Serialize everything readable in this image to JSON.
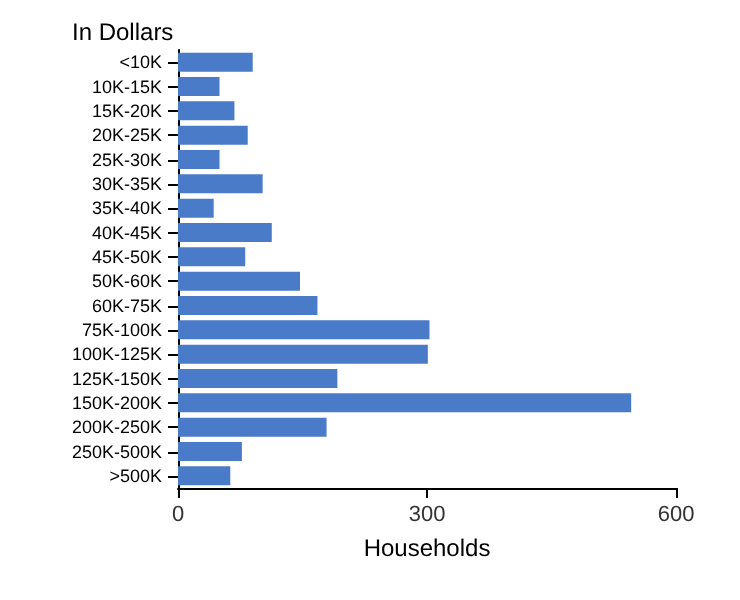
{
  "chart_data": {
    "type": "bar",
    "orientation": "horizontal",
    "ylabel": "In Dollars",
    "xlabel": "Households",
    "categories": [
      "<10K",
      "10K-15K",
      "15K-20K",
      "20K-25K",
      "25K-30K",
      "30K-35K",
      "35K-40K",
      "40K-45K",
      "45K-50K",
      "50K-60K",
      "60K-75K",
      "75K-100K",
      "100K-125K",
      "125K-150K",
      "150K-200K",
      "200K-250K",
      "250K-500K",
      ">500K"
    ],
    "values": [
      90,
      50,
      68,
      84,
      50,
      102,
      43,
      113,
      81,
      147,
      168,
      303,
      301,
      192,
      546,
      179,
      77,
      63
    ],
    "color": "#4a7bc8",
    "xlim": [
      0,
      600
    ],
    "xticks": [
      0,
      300,
      600
    ],
    "grid": false
  }
}
